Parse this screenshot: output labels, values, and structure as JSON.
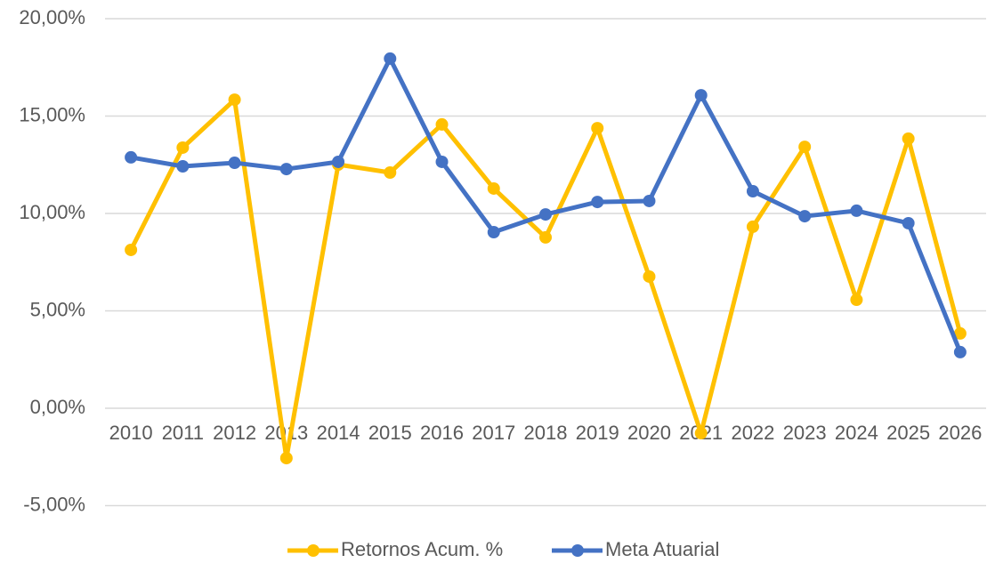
{
  "chart_data": {
    "type": "line",
    "categories": [
      "2010",
      "2011",
      "2012",
      "2013",
      "2014",
      "2015",
      "2016",
      "2017",
      "2018",
      "2019",
      "2020",
      "2021",
      "2022",
      "2023",
      "2024",
      "2025",
      "2026"
    ],
    "series": [
      {
        "name": "Retornos Acum. %",
        "color": "#ffc000",
        "values": [
          8.13,
          13.38,
          15.84,
          -2.56,
          12.51,
          12.1,
          14.57,
          11.28,
          8.77,
          14.38,
          6.76,
          -1.28,
          9.32,
          13.42,
          5.57,
          13.84,
          3.84
        ]
      },
      {
        "name": "Meta Atuarial",
        "color": "#4472c4",
        "values": [
          12.88,
          12.42,
          12.6,
          12.28,
          12.65,
          17.95,
          12.65,
          9.04,
          9.95,
          10.59,
          10.64,
          16.07,
          11.14,
          9.86,
          10.14,
          9.5,
          2.88
        ]
      }
    ],
    "ylim": [
      -5,
      20
    ],
    "yticks": [
      {
        "value": -5,
        "label": "-5,00%"
      },
      {
        "value": 0,
        "label": "0,00%"
      },
      {
        "value": 5,
        "label": "5,00%"
      },
      {
        "value": 10,
        "label": "10,00%"
      },
      {
        "value": 15,
        "label": "15,00%"
      },
      {
        "value": 20,
        "label": "20,00%"
      }
    ],
    "grid": true,
    "legend": "bottom"
  }
}
